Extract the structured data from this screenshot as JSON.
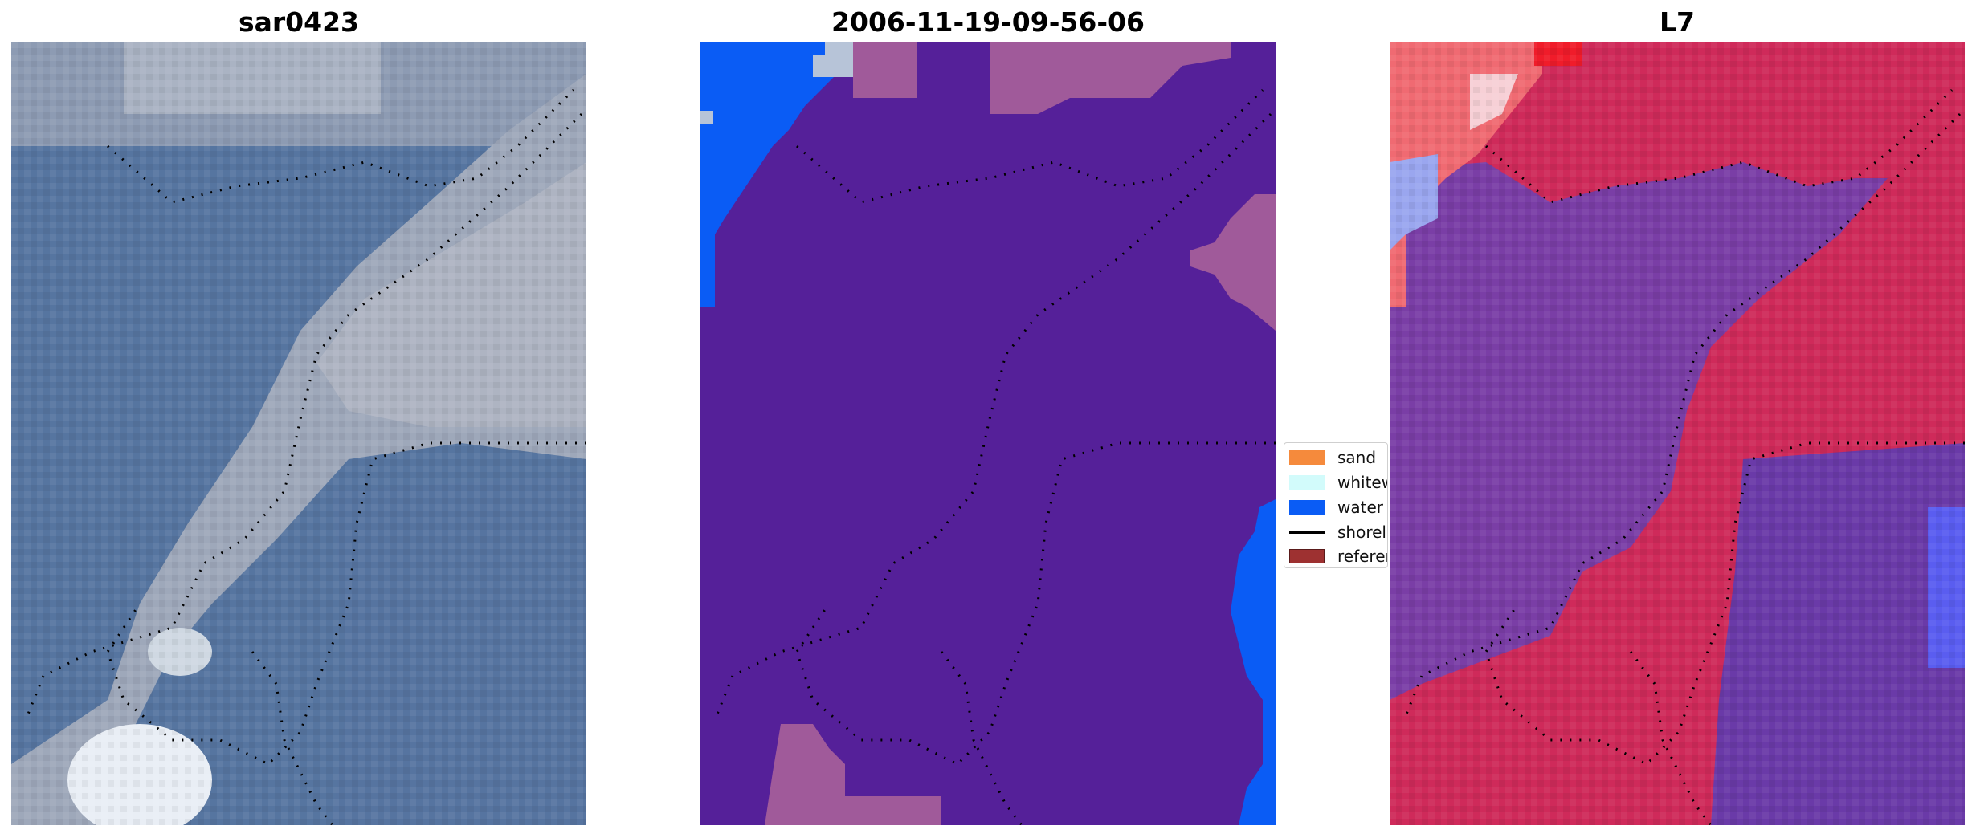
{
  "panels": [
    {
      "title": "sar0423"
    },
    {
      "title": "2006-11-19-09-56-06"
    },
    {
      "title": "L7"
    }
  ],
  "legend": {
    "items": [
      {
        "label": "sand",
        "color": "#f58a3c",
        "kind": "patch"
      },
      {
        "label": "whitew",
        "color": "#d2fbfb",
        "kind": "patch"
      },
      {
        "label": "water",
        "color": "#0a5cf5",
        "kind": "patch"
      },
      {
        "label": "shorel",
        "color": "#000000",
        "kind": "line"
      },
      {
        "label": "referen",
        "color": "#9e3131",
        "kind": "patch"
      }
    ]
  },
  "colors": {
    "classified_background": "#552099",
    "classified_water": "#0a5cf5",
    "classified_pink": "#a05a9a",
    "classified_light": "#b7c4d8",
    "sar_blue": "#5876a2",
    "sar_light": "#a7b0c0",
    "l7_red": "#cd1f52",
    "l7_purple": "#7a3ea6",
    "l7_blue": "#5a5df0"
  }
}
